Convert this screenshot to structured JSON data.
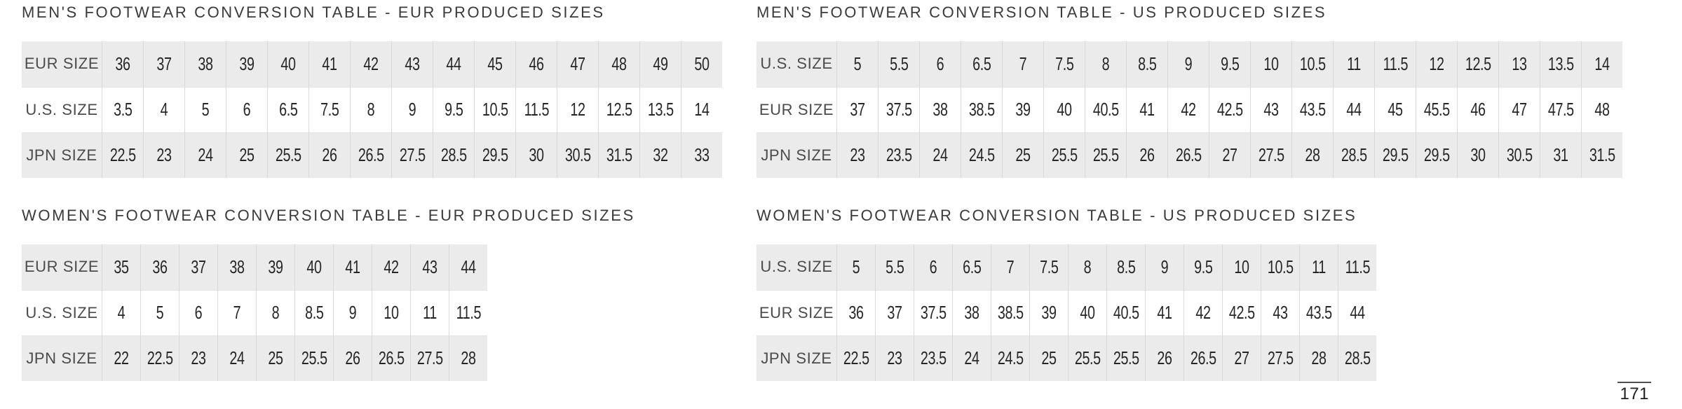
{
  "page": {
    "number": "171"
  },
  "colors": {
    "page_background": "#ffffff",
    "row_fill": "#ebebeb",
    "border_vertical": "#d9d9d9",
    "border_horizontal": "#e4e4e4",
    "title_text": "#3a3a3a",
    "label_text": "#4b4b4b",
    "value_text": "#262626"
  },
  "tables": [
    {
      "id": "mens-eur",
      "type": "table",
      "title": "MEN'S FOOTWEAR CONVERSION TABLE - EUR PRODUCED SIZES",
      "rows": [
        {
          "label": "EUR SIZE",
          "values": [
            "36",
            "37",
            "38",
            "39",
            "40",
            "41",
            "42",
            "43",
            "44",
            "45",
            "46",
            "47",
            "48",
            "49",
            "50"
          ]
        },
        {
          "label": "U.S. SIZE",
          "values": [
            "3.5",
            "4",
            "5",
            "6",
            "6.5",
            "7.5",
            "8",
            "9",
            "9.5",
            "10.5",
            "11.5",
            "12",
            "12.5",
            "13.5",
            "14"
          ]
        },
        {
          "label": "JPN SIZE",
          "values": [
            "22.5",
            "23",
            "24",
            "25",
            "25.5",
            "26",
            "26.5",
            "27.5",
            "28.5",
            "29.5",
            "30",
            "30.5",
            "31.5",
            "32",
            "33"
          ]
        }
      ]
    },
    {
      "id": "mens-us",
      "type": "table",
      "title": "MEN'S FOOTWEAR CONVERSION TABLE - US PRODUCED SIZES",
      "rows": [
        {
          "label": "U.S. SIZE",
          "values": [
            "5",
            "5.5",
            "6",
            "6.5",
            "7",
            "7.5",
            "8",
            "8.5",
            "9",
            "9.5",
            "10",
            "10.5",
            "11",
            "11.5",
            "12",
            "12.5",
            "13",
            "13.5",
            "14"
          ]
        },
        {
          "label": "EUR SIZE",
          "values": [
            "37",
            "37.5",
            "38",
            "38.5",
            "39",
            "40",
            "40.5",
            "41",
            "42",
            "42.5",
            "43",
            "43.5",
            "44",
            "45",
            "45.5",
            "46",
            "47",
            "47.5",
            "48"
          ]
        },
        {
          "label": "JPN SIZE",
          "values": [
            "23",
            "23.5",
            "24",
            "24.5",
            "25",
            "25.5",
            "25.5",
            "26",
            "26.5",
            "27",
            "27.5",
            "28",
            "28.5",
            "29.5",
            "29.5",
            "30",
            "30.5",
            "31",
            "31.5"
          ]
        }
      ]
    },
    {
      "id": "womens-eur",
      "type": "table",
      "title": "WOMEN'S FOOTWEAR CONVERSION TABLE - EUR PRODUCED SIZES",
      "rows": [
        {
          "label": "EUR SIZE",
          "values": [
            "35",
            "36",
            "37",
            "38",
            "39",
            "40",
            "41",
            "42",
            "43",
            "44"
          ]
        },
        {
          "label": "U.S. SIZE",
          "values": [
            "4",
            "5",
            "6",
            "7",
            "8",
            "8.5",
            "9",
            "10",
            "11",
            "11.5"
          ]
        },
        {
          "label": "JPN SIZE",
          "values": [
            "22",
            "22.5",
            "23",
            "24",
            "25",
            "25.5",
            "26",
            "26.5",
            "27.5",
            "28"
          ]
        }
      ]
    },
    {
      "id": "womens-us",
      "type": "table",
      "title": "WOMEN'S FOOTWEAR CONVERSION TABLE - US PRODUCED SIZES",
      "rows": [
        {
          "label": "U.S. SIZE",
          "values": [
            "5",
            "5.5",
            "6",
            "6.5",
            "7",
            "7.5",
            "8",
            "8.5",
            "9",
            "9.5",
            "10",
            "10.5",
            "11",
            "11.5"
          ]
        },
        {
          "label": "EUR SIZE",
          "values": [
            "36",
            "37",
            "37.5",
            "38",
            "38.5",
            "39",
            "40",
            "40.5",
            "41",
            "42",
            "42.5",
            "43",
            "43.5",
            "44"
          ]
        },
        {
          "label": "JPN SIZE",
          "values": [
            "22.5",
            "23",
            "23.5",
            "24",
            "24.5",
            "25",
            "25.5",
            "25.5",
            "26",
            "26.5",
            "27",
            "27.5",
            "28",
            "28.5"
          ]
        }
      ]
    }
  ]
}
